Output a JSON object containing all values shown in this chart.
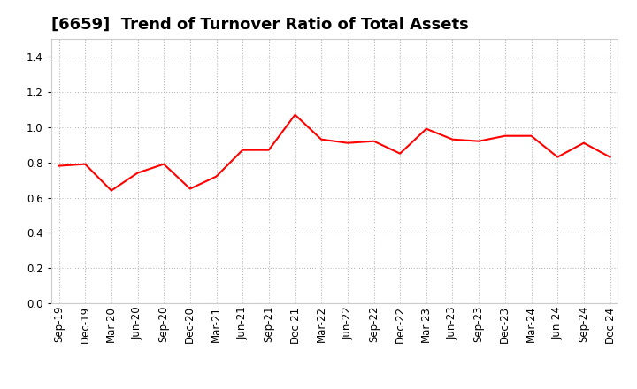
{
  "title": "[6659]  Trend of Turnover Ratio of Total Assets",
  "x_labels": [
    "Sep-19",
    "Dec-19",
    "Mar-20",
    "Jun-20",
    "Sep-20",
    "Dec-20",
    "Mar-21",
    "Jun-21",
    "Sep-21",
    "Dec-21",
    "Mar-22",
    "Jun-22",
    "Sep-22",
    "Dec-22",
    "Mar-23",
    "Jun-23",
    "Sep-23",
    "Dec-23",
    "Mar-24",
    "Jun-24",
    "Sep-24",
    "Dec-24"
  ],
  "y_values": [
    0.78,
    0.79,
    0.64,
    0.74,
    0.79,
    0.65,
    0.72,
    0.87,
    0.87,
    1.07,
    0.93,
    0.91,
    0.92,
    0.85,
    0.99,
    0.93,
    0.92,
    0.95,
    0.95,
    0.83,
    0.91,
    0.83
  ],
  "line_color": "#ff0000",
  "line_width": 1.5,
  "ylim": [
    0.0,
    1.5
  ],
  "yticks": [
    0.0,
    0.2,
    0.4,
    0.6,
    0.8,
    1.0,
    1.2,
    1.4
  ],
  "background_color": "#ffffff",
  "grid_color": "#bbbbbb",
  "title_fontsize": 13,
  "tick_fontsize": 8.5
}
